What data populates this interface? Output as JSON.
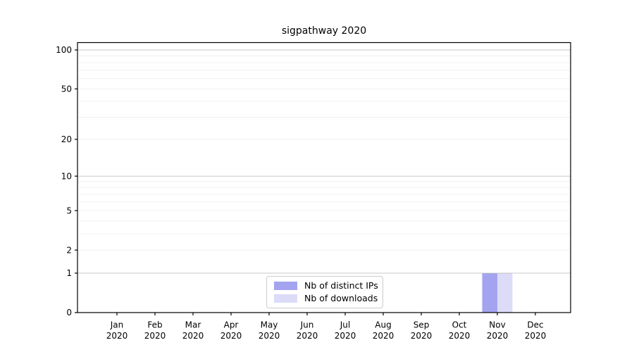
{
  "chart_data": {
    "type": "bar",
    "title": "sigpathway 2020",
    "x": [
      "Jan",
      "Feb",
      "Mar",
      "Apr",
      "May",
      "Jun",
      "Jul",
      "Aug",
      "Sep",
      "Oct",
      "Nov",
      "Dec"
    ],
    "x_year": "2020",
    "series": [
      {
        "name": "Nb of distinct IPs",
        "color": "#a3a3ef",
        "edge_color": "#8f8fe0",
        "values": [
          0,
          0,
          0,
          0,
          0,
          0,
          0,
          0,
          0,
          0,
          1,
          0
        ]
      },
      {
        "name": "Nb of downloads",
        "color": "#dcdcf8",
        "edge_color": "#c9c9ef",
        "values": [
          0,
          0,
          0,
          0,
          0,
          0,
          0,
          0,
          0,
          0,
          1,
          0
        ]
      }
    ],
    "yticks": [
      0,
      1,
      2,
      5,
      10,
      20,
      50,
      100
    ],
    "major_gridlines": [
      1,
      10,
      100
    ],
    "minor_gridlines": [
      2,
      3,
      4,
      5,
      6,
      7,
      8,
      9,
      20,
      30,
      40,
      50,
      60,
      70,
      80,
      90
    ],
    "scale": "log1p",
    "ylim": [
      0,
      114
    ],
    "grid": true,
    "legend_position": "lower-center-left",
    "colors": {
      "grid_major": "#c9c9c9",
      "grid_minor": "#f0f0f0",
      "spine": "#000000",
      "tick_text": "#000000",
      "legend_border": "#cccccc"
    }
  }
}
